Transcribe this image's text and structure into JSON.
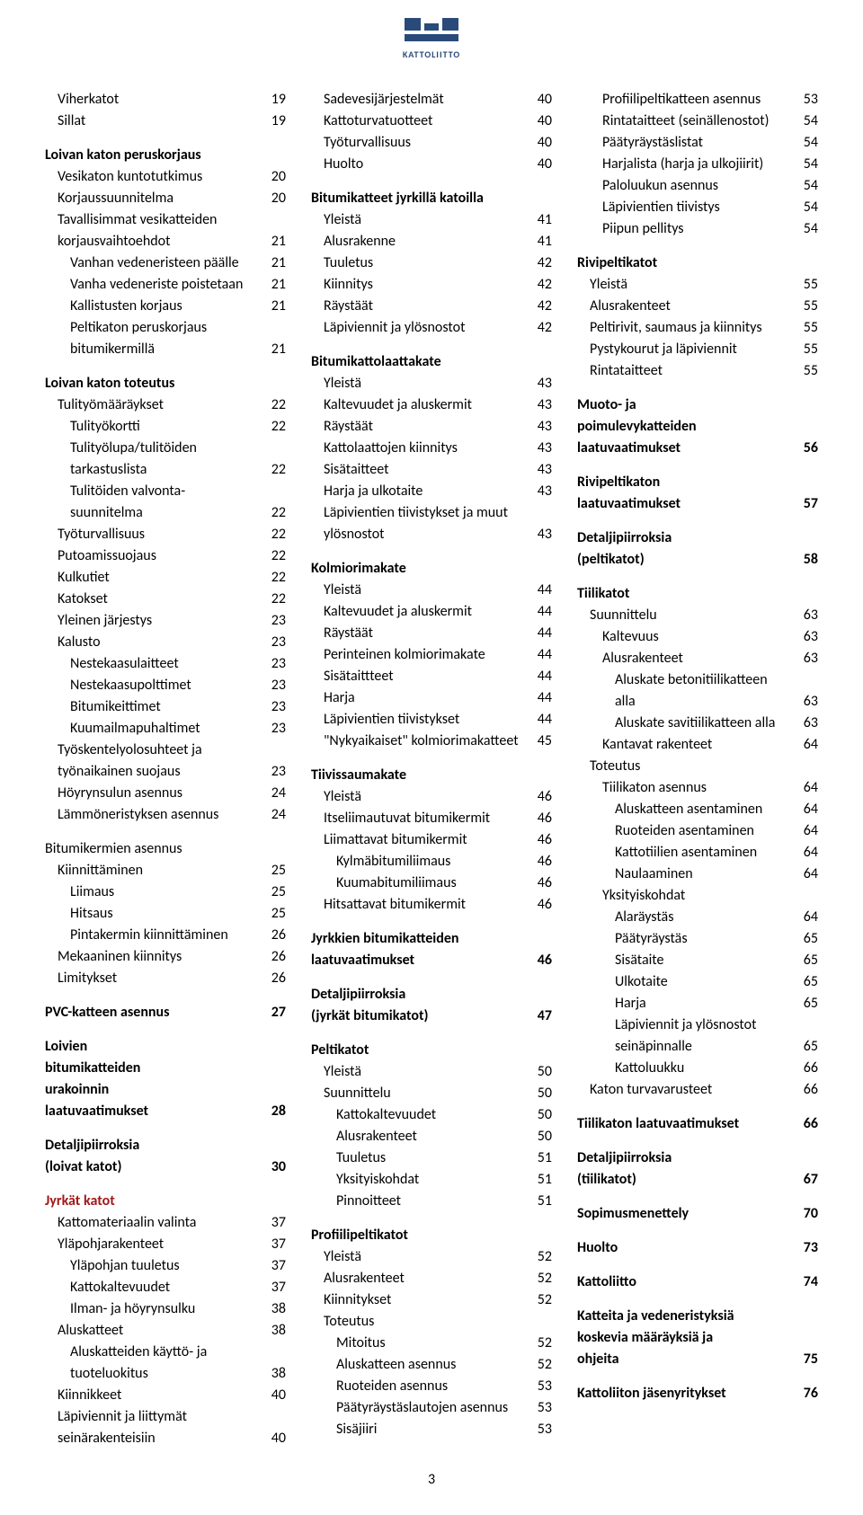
{
  "logoText": "KATTOLIITTO",
  "pageNumber": "3",
  "colors": {
    "accent": "#a01818",
    "logo": "#2a4a7a"
  },
  "columns": [
    [
      {
        "label": "Viherkatot",
        "pg": "19",
        "ind": 1
      },
      {
        "label": "Sillat",
        "pg": "19",
        "ind": 1
      },
      {
        "spacer": true
      },
      {
        "label": "Loivan katon peruskorjaus",
        "pg": "",
        "bold": true
      },
      {
        "label": "Vesikaton kuntotutkimus",
        "pg": "20",
        "ind": 1
      },
      {
        "label": "Korjaussuunnitelma",
        "pg": "20",
        "ind": 1
      },
      {
        "label": "Tavallisimmat vesikatteiden",
        "pg": "",
        "ind": 1
      },
      {
        "label": "korjausvaihtoehdot",
        "pg": "21",
        "ind": 1
      },
      {
        "label": "Vanhan vedeneristeen päälle",
        "pg": "21",
        "ind": 2
      },
      {
        "label": "Vanha vedeneriste poistetaan",
        "pg": "21",
        "ind": 2
      },
      {
        "label": "Kallistusten korjaus",
        "pg": "21",
        "ind": 2
      },
      {
        "label": "Peltikaton peruskorjaus",
        "pg": "",
        "ind": 2
      },
      {
        "label": "bitumikermillä",
        "pg": "21",
        "ind": 2
      },
      {
        "spacer": true
      },
      {
        "label": "Loivan katon toteutus",
        "pg": "",
        "bold": true
      },
      {
        "label": "Tulityömääräykset",
        "pg": "22",
        "ind": 1
      },
      {
        "label": "Tulityökortti",
        "pg": "22",
        "ind": 2
      },
      {
        "label": "Tulityölupa/tulitöiden",
        "pg": "",
        "ind": 2
      },
      {
        "label": "tarkastuslista",
        "pg": "22",
        "ind": 2
      },
      {
        "label": "Tulitöiden valvonta-",
        "pg": "",
        "ind": 2
      },
      {
        "label": "suunnitelma",
        "pg": "22",
        "ind": 2
      },
      {
        "label": "Työturvallisuus",
        "pg": "22",
        "ind": 1
      },
      {
        "label": "Putoamissuojaus",
        "pg": "22",
        "ind": 1
      },
      {
        "label": "Kulkutiet",
        "pg": "22",
        "ind": 1
      },
      {
        "label": "Katokset",
        "pg": "22",
        "ind": 1
      },
      {
        "label": "Yleinen järjestys",
        "pg": "23",
        "ind": 1
      },
      {
        "label": "Kalusto",
        "pg": "23",
        "ind": 1
      },
      {
        "label": "Nestekaasulaitteet",
        "pg": "23",
        "ind": 2
      },
      {
        "label": "Nestekaasupolttimet",
        "pg": "23",
        "ind": 2
      },
      {
        "label": "Bitumikeittimet",
        "pg": "23",
        "ind": 2
      },
      {
        "label": "Kuumailmapuhaltimet",
        "pg": "23",
        "ind": 2
      },
      {
        "label": "Työskentelyolosuhteet ja",
        "pg": "",
        "ind": 1
      },
      {
        "label": "työnaikainen suojaus",
        "pg": "23",
        "ind": 1
      },
      {
        "label": "Höyrynsulun asennus",
        "pg": "24",
        "ind": 1
      },
      {
        "label": "Lämmöneristyksen asennus",
        "pg": "24",
        "ind": 1
      },
      {
        "spacer": true
      },
      {
        "label": "Bitumikermien asennus",
        "pg": ""
      },
      {
        "label": "Kiinnittäminen",
        "pg": "25",
        "ind": 1
      },
      {
        "label": "Liimaus",
        "pg": "25",
        "ind": 2
      },
      {
        "label": "Hitsaus",
        "pg": "25",
        "ind": 2
      },
      {
        "label": "Pintakermin kiinnittäminen",
        "pg": "26",
        "ind": 2
      },
      {
        "label": "Mekaaninen kiinnitys",
        "pg": "26",
        "ind": 1
      },
      {
        "label": "Limitykset",
        "pg": "26",
        "ind": 1
      },
      {
        "spacer": true
      },
      {
        "label": "PVC-katteen asennus",
        "pg": "27",
        "bold": true
      },
      {
        "spacer": true
      },
      {
        "label": "Loivien",
        "pg": "",
        "bold": true
      },
      {
        "label": "bitumikatteiden",
        "pg": "",
        "bold": true
      },
      {
        "label": "urakoinnin",
        "pg": "",
        "bold": true
      },
      {
        "label": "laatuvaatimukset",
        "pg": "28",
        "bold": true
      },
      {
        "spacer": true
      },
      {
        "label": "Detaljipiirroksia",
        "pg": "",
        "bold": true
      },
      {
        "label": "(loivat katot)",
        "pg": "30",
        "bold": true
      },
      {
        "spacer": true
      },
      {
        "label": "Jyrkät katot",
        "pg": "",
        "bold": true,
        "red": true
      },
      {
        "label": "Kattomateriaalin valinta",
        "pg": "37",
        "ind": 1
      },
      {
        "label": "Yläpohjarakenteet",
        "pg": "37",
        "ind": 1
      },
      {
        "label": "Yläpohjan tuuletus",
        "pg": "37",
        "ind": 2
      },
      {
        "label": "Kattokaltevuudet",
        "pg": "37",
        "ind": 2
      },
      {
        "label": "Ilman- ja höyrynsulku",
        "pg": "38",
        "ind": 2
      },
      {
        "label": "Aluskatteet",
        "pg": "38",
        "ind": 1
      },
      {
        "label": "Aluskatteiden käyttö- ja",
        "pg": "",
        "ind": 2
      },
      {
        "label": "tuoteluokitus",
        "pg": "38",
        "ind": 2
      },
      {
        "label": "Kiinnikkeet",
        "pg": "40",
        "ind": 1
      },
      {
        "label": "Läpiviennit ja liittymät",
        "pg": "",
        "ind": 1
      },
      {
        "label": "seinärakenteisiin",
        "pg": "40",
        "ind": 1
      }
    ],
    [
      {
        "label": "Sadevesijärjestelmät",
        "pg": "40",
        "ind": 1
      },
      {
        "label": "Kattoturvatuotteet",
        "pg": "40",
        "ind": 1
      },
      {
        "label": "Työturvallisuus",
        "pg": "40",
        "ind": 1
      },
      {
        "label": "Huolto",
        "pg": "40",
        "ind": 1
      },
      {
        "spacer": true
      },
      {
        "label": "Bitumikatteet jyrkillä katoilla",
        "pg": "",
        "bold": true
      },
      {
        "label": "Yleistä",
        "pg": "41",
        "ind": 1
      },
      {
        "label": "Alusrakenne",
        "pg": "41",
        "ind": 1
      },
      {
        "label": "Tuuletus",
        "pg": "42",
        "ind": 1
      },
      {
        "label": "Kiinnitys",
        "pg": "42",
        "ind": 1
      },
      {
        "label": "Räystäät",
        "pg": "42",
        "ind": 1
      },
      {
        "label": "Läpiviennit ja ylösnostot",
        "pg": "42",
        "ind": 1
      },
      {
        "spacer": true
      },
      {
        "label": "Bitumikattolaattakate",
        "pg": "",
        "bold": true
      },
      {
        "label": "Yleistä",
        "pg": "43",
        "ind": 1
      },
      {
        "label": "Kaltevuudet ja aluskermit",
        "pg": "43",
        "ind": 1
      },
      {
        "label": "Räystäät",
        "pg": "43",
        "ind": 1
      },
      {
        "label": "Kattolaattojen kiinnitys",
        "pg": "43",
        "ind": 1
      },
      {
        "label": "Sisätaitteet",
        "pg": "43",
        "ind": 1
      },
      {
        "label": "Harja ja ulkotaite",
        "pg": "43",
        "ind": 1
      },
      {
        "label": "Läpivientien tiivistykset ja muut",
        "pg": "",
        "ind": 1
      },
      {
        "label": "ylösnostot",
        "pg": "43",
        "ind": 1
      },
      {
        "spacer": true
      },
      {
        "label": "Kolmiorimakate",
        "pg": "",
        "bold": true
      },
      {
        "label": "Yleistä",
        "pg": "44",
        "ind": 1
      },
      {
        "label": "Kaltevuudet ja aluskermit",
        "pg": "44",
        "ind": 1
      },
      {
        "label": "Räystäät",
        "pg": "44",
        "ind": 1
      },
      {
        "label": "Perinteinen kolmiorimakate",
        "pg": "44",
        "ind": 1
      },
      {
        "label": "Sisätaittteet",
        "pg": "44",
        "ind": 1
      },
      {
        "label": "Harja",
        "pg": "44",
        "ind": 1
      },
      {
        "label": "Läpivientien tiivistykset",
        "pg": "44",
        "ind": 1
      },
      {
        "label": "\"Nykyaikaiset\" kolmiorimakatteet",
        "pg": "45",
        "ind": 1
      },
      {
        "spacer": true
      },
      {
        "label": "Tiivissaumakate",
        "pg": "",
        "bold": true
      },
      {
        "label": "Yleistä",
        "pg": "46",
        "ind": 1
      },
      {
        "label": "Itseliimautuvat bitumikermit",
        "pg": "46",
        "ind": 1
      },
      {
        "label": "Liimattavat bitumikermit",
        "pg": "46",
        "ind": 1
      },
      {
        "label": "Kylmäbitumiliimaus",
        "pg": "46",
        "ind": 2
      },
      {
        "label": "Kuumabitumiliimaus",
        "pg": "46",
        "ind": 2
      },
      {
        "label": "Hitsattavat bitumikermit",
        "pg": "46",
        "ind": 1
      },
      {
        "spacer": true
      },
      {
        "label": "Jyrkkien bitumikatteiden",
        "pg": "",
        "bold": true
      },
      {
        "label": "laatuvaatimukset",
        "pg": "46",
        "bold": true
      },
      {
        "spacer": true
      },
      {
        "label": "Detaljipiirroksia",
        "pg": "",
        "bold": true
      },
      {
        "label": "(jyrkät bitumikatot)",
        "pg": "47",
        "bold": true
      },
      {
        "spacer": true
      },
      {
        "label": "Peltikatot",
        "pg": "",
        "bold": true
      },
      {
        "label": "Yleistä",
        "pg": "50",
        "ind": 1
      },
      {
        "label": "Suunnittelu",
        "pg": "50",
        "ind": 1
      },
      {
        "label": "Kattokaltevuudet",
        "pg": "50",
        "ind": 2
      },
      {
        "label": "Alusrakenteet",
        "pg": "50",
        "ind": 2
      },
      {
        "label": "Tuuletus",
        "pg": "51",
        "ind": 2
      },
      {
        "label": "Yksityiskohdat",
        "pg": "51",
        "ind": 2
      },
      {
        "label": "Pinnoitteet",
        "pg": "51",
        "ind": 2
      },
      {
        "spacer": true
      },
      {
        "label": "Profiilipeltikatot",
        "pg": "",
        "bold": true
      },
      {
        "label": "Yleistä",
        "pg": "52",
        "ind": 1
      },
      {
        "label": "Alusrakenteet",
        "pg": "52",
        "ind": 1
      },
      {
        "label": "Kiinnitykset",
        "pg": "52",
        "ind": 1
      },
      {
        "label": "Toteutus",
        "pg": "",
        "ind": 1
      },
      {
        "label": "Mitoitus",
        "pg": "52",
        "ind": 2
      },
      {
        "label": "Aluskatteen asennus",
        "pg": "52",
        "ind": 2
      },
      {
        "label": "Ruoteiden asennus",
        "pg": "53",
        "ind": 2
      },
      {
        "label": "Päätyräystäslautojen asennus",
        "pg": "53",
        "ind": 2
      },
      {
        "label": "Sisäjiiri",
        "pg": "53",
        "ind": 2
      }
    ],
    [
      {
        "label": "Profiilipeltikatteen asennus",
        "pg": "53",
        "ind": 2
      },
      {
        "label": "Rintataitteet (seinällenostot)",
        "pg": "54",
        "ind": 2
      },
      {
        "label": "Päätyräystäslistat",
        "pg": "54",
        "ind": 2
      },
      {
        "label": "Harjalista (harja ja ulkojiirit)",
        "pg": "54",
        "ind": 2
      },
      {
        "label": "Paloluukun asennus",
        "pg": "54",
        "ind": 2
      },
      {
        "label": "Läpivientien tiivistys",
        "pg": "54",
        "ind": 2
      },
      {
        "label": "Piipun pellitys",
        "pg": "54",
        "ind": 2
      },
      {
        "spacer": true
      },
      {
        "label": "Rivipeltikatot",
        "pg": "",
        "bold": true
      },
      {
        "label": "Yleistä",
        "pg": "55",
        "ind": 1
      },
      {
        "label": "Alusrakenteet",
        "pg": "55",
        "ind": 1
      },
      {
        "label": "Peltirivit, saumaus ja kiinnitys",
        "pg": "55",
        "ind": 1
      },
      {
        "label": "Pystykourut ja läpiviennit",
        "pg": "55",
        "ind": 1
      },
      {
        "label": "Rintataitteet",
        "pg": "55",
        "ind": 1
      },
      {
        "spacer": true
      },
      {
        "label": "Muoto- ja",
        "pg": "",
        "bold": true
      },
      {
        "label": "poimulevykatteiden",
        "pg": "",
        "bold": true
      },
      {
        "label": "laatuvaatimukset",
        "pg": "56",
        "bold": true
      },
      {
        "spacer": true
      },
      {
        "label": "Rivipeltikaton",
        "pg": "",
        "bold": true
      },
      {
        "label": "laatuvaatimukset",
        "pg": "57",
        "bold": true
      },
      {
        "spacer": true
      },
      {
        "label": "Detaljipiirroksia",
        "pg": "",
        "bold": true
      },
      {
        "label": "(peltikatot)",
        "pg": "58",
        "bold": true
      },
      {
        "spacer": true
      },
      {
        "label": "Tiilikatot",
        "pg": "",
        "bold": true
      },
      {
        "label": "Suunnittelu",
        "pg": "63",
        "ind": 1
      },
      {
        "label": "Kaltevuus",
        "pg": "63",
        "ind": 2
      },
      {
        "label": "Alusrakenteet",
        "pg": "63",
        "ind": 2
      },
      {
        "label": "Aluskate betonitiilikatteen",
        "pg": "",
        "ind": 3
      },
      {
        "label": "alla",
        "pg": "63",
        "ind": 3
      },
      {
        "label": "Aluskate savitiilikatteen alla",
        "pg": "63",
        "ind": 3
      },
      {
        "label": "Kantavat rakenteet",
        "pg": "64",
        "ind": 2
      },
      {
        "label": "Toteutus",
        "pg": "",
        "ind": 1
      },
      {
        "label": "Tiilikaton asennus",
        "pg": "64",
        "ind": 2
      },
      {
        "label": "Aluskatteen asentaminen",
        "pg": "64",
        "ind": 3
      },
      {
        "label": "Ruoteiden asentaminen",
        "pg": "64",
        "ind": 3
      },
      {
        "label": "Kattotiilien asentaminen",
        "pg": "64",
        "ind": 3
      },
      {
        "label": "Naulaaminen",
        "pg": "64",
        "ind": 3
      },
      {
        "label": "Yksityiskohdat",
        "pg": "",
        "ind": 2
      },
      {
        "label": "Alaräystäs",
        "pg": "64",
        "ind": 3
      },
      {
        "label": "Päätyräystäs",
        "pg": "65",
        "ind": 3
      },
      {
        "label": "Sisätaite",
        "pg": "65",
        "ind": 3
      },
      {
        "label": "Ulkotaite",
        "pg": "65",
        "ind": 3
      },
      {
        "label": "Harja",
        "pg": "65",
        "ind": 3
      },
      {
        "label": "Läpiviennit ja ylösnostot",
        "pg": "",
        "ind": 3
      },
      {
        "label": "seinäpinnalle",
        "pg": "65",
        "ind": 3
      },
      {
        "label": "Kattoluukku",
        "pg": "66",
        "ind": 3
      },
      {
        "label": "Katon turvavarusteet",
        "pg": "66",
        "ind": 1
      },
      {
        "spacer": true
      },
      {
        "label": "Tiilikaton laatuvaatimukset",
        "pg": "66",
        "bold": true
      },
      {
        "spacer": true
      },
      {
        "label": "Detaljipiirroksia",
        "pg": "",
        "bold": true
      },
      {
        "label": "(tiilikatot)",
        "pg": "67",
        "bold": true
      },
      {
        "spacer": true
      },
      {
        "label": "Sopimusmenettely",
        "pg": "70",
        "bold": true
      },
      {
        "spacer": true
      },
      {
        "label": "Huolto",
        "pg": "73",
        "bold": true
      },
      {
        "spacer": true
      },
      {
        "label": "Kattoliitto",
        "pg": "74",
        "bold": true
      },
      {
        "spacer": true
      },
      {
        "label": "Katteita ja vedeneristyksiä",
        "pg": "",
        "bold": true
      },
      {
        "label": "koskevia määräyksiä ja",
        "pg": "",
        "bold": true
      },
      {
        "label": "ohjeita",
        "pg": "75",
        "bold": true
      },
      {
        "spacer": true
      },
      {
        "label": "Kattoliiton jäsenyritykset",
        "pg": "76",
        "bold": true
      }
    ]
  ]
}
